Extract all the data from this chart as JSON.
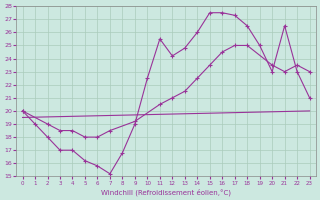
{
  "xlabel": "Windchill (Refroidissement éolien,°C)",
  "xlim": [
    -0.5,
    23.5
  ],
  "ylim": [
    15,
    28
  ],
  "yticks": [
    15,
    16,
    17,
    18,
    19,
    20,
    21,
    22,
    23,
    24,
    25,
    26,
    27,
    28
  ],
  "xticks": [
    0,
    1,
    2,
    3,
    4,
    5,
    6,
    7,
    8,
    9,
    10,
    11,
    12,
    13,
    14,
    15,
    16,
    17,
    18,
    19,
    20,
    21,
    22,
    23
  ],
  "bg_color": "#cce8e0",
  "line_color": "#993399",
  "grid_color": "#aaccbb",
  "line1_x": [
    0,
    1,
    2,
    3,
    4,
    5,
    6,
    7,
    8,
    9,
    10,
    11,
    12,
    13,
    14,
    15,
    16,
    17,
    18,
    19,
    20,
    21,
    22,
    23
  ],
  "line1_y": [
    20.0,
    19.0,
    18.0,
    17.0,
    17.0,
    16.2,
    15.8,
    15.2,
    16.8,
    19.0,
    22.5,
    25.5,
    24.2,
    24.8,
    26.0,
    27.5,
    27.5,
    27.3,
    26.5,
    25.0,
    23.0,
    26.5,
    23.0,
    21.0
  ],
  "line2_x": [
    0,
    2,
    3,
    4,
    5,
    6,
    7,
    9,
    11,
    12,
    13,
    14,
    15,
    16,
    17,
    18,
    20,
    21,
    22,
    23
  ],
  "line2_y": [
    20.0,
    19.0,
    18.5,
    18.5,
    18.0,
    18.0,
    18.5,
    19.2,
    20.5,
    21.0,
    21.5,
    22.5,
    23.5,
    24.5,
    25.0,
    25.0,
    23.5,
    23.0,
    23.5,
    23.0
  ],
  "line3_x": [
    0,
    23
  ],
  "line3_y": [
    19.5,
    20.0
  ]
}
